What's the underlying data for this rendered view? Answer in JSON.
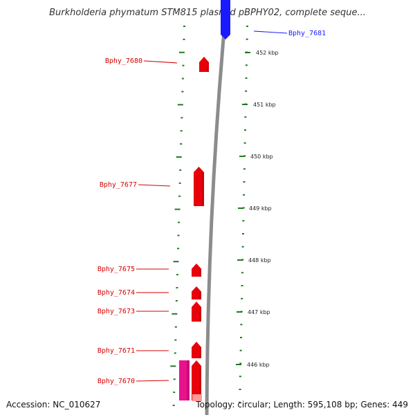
{
  "title": "Burkholderia phymatum STM815 plasmid pBPHY02, complete seque...",
  "footer": {
    "accession": "Accession: NC_010627",
    "topology": "Topology: circular; Length: 595,108 bp; Genes: 449"
  },
  "colors": {
    "forward_gene": "#e8000a",
    "reverse_gene": "#1a1aff",
    "pink_feature": "#e8128c",
    "tick": "#1f7a1f",
    "backbone": "#8c8c8c"
  },
  "scale_labels": [
    "452 kbp",
    "451 kbp",
    "450 kbp",
    "449 kbp",
    "448 kbp",
    "447 kbp",
    "446 kbp"
  ],
  "genes": [
    {
      "id": "Bphy_7681",
      "strand": "reverse"
    },
    {
      "id": "Bphy_7680",
      "strand": "forward"
    },
    {
      "id": "Bphy_7677",
      "strand": "forward"
    },
    {
      "id": "Bphy_7675",
      "strand": "forward"
    },
    {
      "id": "Bphy_7674",
      "strand": "forward"
    },
    {
      "id": "Bphy_7673",
      "strand": "forward"
    },
    {
      "id": "Bphy_7671",
      "strand": "forward"
    },
    {
      "id": "Bphy_7670",
      "strand": "forward"
    }
  ]
}
